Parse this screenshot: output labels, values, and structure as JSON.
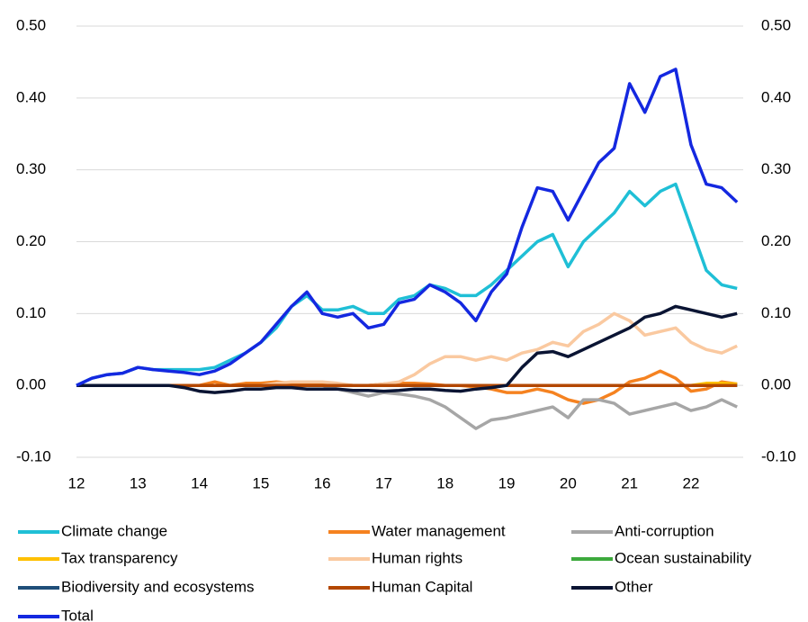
{
  "chart_data": {
    "type": "line",
    "x": [
      12,
      12.25,
      12.5,
      12.75,
      13,
      13.25,
      13.5,
      13.75,
      14,
      14.25,
      14.5,
      14.75,
      15,
      15.25,
      15.5,
      15.75,
      16,
      16.25,
      16.5,
      16.75,
      17,
      17.25,
      17.5,
      17.75,
      18,
      18.25,
      18.5,
      18.75,
      19,
      19.25,
      19.5,
      19.75,
      20,
      20.25,
      20.5,
      20.75,
      21,
      21.25,
      21.5,
      21.75,
      22,
      22.25,
      22.5,
      22.75
    ],
    "xlim": [
      12,
      22.85
    ],
    "xticks": [
      12,
      13,
      14,
      15,
      16,
      17,
      18,
      19,
      20,
      21,
      22
    ],
    "ylim": [
      -0.1,
      0.5
    ],
    "yticks": [
      {
        "value": -0.1,
        "label": "-0.10"
      },
      {
        "value": 0,
        "label": "0.00"
      },
      {
        "value": 0.1,
        "label": "0.10"
      },
      {
        "value": 0.2,
        "label": "0.20"
      },
      {
        "value": 0.3,
        "label": "0.30"
      },
      {
        "value": 0.4,
        "label": "0.40"
      },
      {
        "value": 0.5,
        "label": "0.50"
      }
    ],
    "y2lim": [
      -0.1,
      0.5
    ],
    "y2ticks": [
      {
        "value": -0.1,
        "label": "-0.10"
      },
      {
        "value": 0,
        "label": "0.00"
      },
      {
        "value": 0.1,
        "label": "0.10"
      },
      {
        "value": 0.2,
        "label": "0.20"
      },
      {
        "value": 0.3,
        "label": "0.30"
      },
      {
        "value": 0.4,
        "label": "0.40"
      },
      {
        "value": 0.5,
        "label": "0.50"
      }
    ],
    "grid": true,
    "legend": "bottom",
    "series": [
      {
        "name": "Climate change",
        "color": "#1fbfd6",
        "values": [
          0,
          0.01,
          0.015,
          0.017,
          0.025,
          0.022,
          0.022,
          0.022,
          0.022,
          0.025,
          0.035,
          0.045,
          0.06,
          0.08,
          0.11,
          0.125,
          0.105,
          0.105,
          0.11,
          0.1,
          0.1,
          0.12,
          0.125,
          0.14,
          0.135,
          0.125,
          0.125,
          0.14,
          0.16,
          0.18,
          0.2,
          0.21,
          0.165,
          0.2,
          0.22,
          0.24,
          0.27,
          0.25,
          0.27,
          0.28,
          0.22,
          0.16,
          0.14,
          0.135
        ]
      },
      {
        "name": "Water management",
        "color": "#f58220",
        "values": [
          0,
          0,
          0,
          0,
          0,
          0,
          0,
          0,
          0,
          0.005,
          0,
          0.003,
          0.003,
          0.005,
          0.003,
          0.002,
          0.003,
          0.002,
          0,
          0,
          0.002,
          0.003,
          0.003,
          0.002,
          0,
          0,
          -0.002,
          -0.005,
          -0.01,
          -0.01,
          -0.005,
          -0.01,
          -0.02,
          -0.025,
          -0.02,
          -0.01,
          0.005,
          0.01,
          0.02,
          0.01,
          -0.008,
          -0.005,
          0.005,
          0.002
        ]
      },
      {
        "name": "Anti-corruption",
        "color": "#a6a6a6",
        "values": [
          0,
          0,
          0,
          0,
          0,
          0,
          0,
          0,
          0,
          0,
          0,
          0,
          0,
          0,
          0,
          0,
          0,
          -0.005,
          -0.01,
          -0.015,
          -0.01,
          -0.012,
          -0.015,
          -0.02,
          -0.03,
          -0.045,
          -0.06,
          -0.048,
          -0.045,
          -0.04,
          -0.035,
          -0.03,
          -0.045,
          -0.02,
          -0.02,
          -0.025,
          -0.04,
          -0.035,
          -0.03,
          -0.025,
          -0.035,
          -0.03,
          -0.02,
          -0.03
        ]
      },
      {
        "name": "Tax transparency",
        "color": "#ffc000",
        "values": [
          0,
          0,
          0,
          0,
          0,
          0,
          0,
          0,
          0,
          0,
          0,
          0,
          0,
          0,
          0,
          0,
          0,
          0,
          0,
          0,
          0,
          0,
          0,
          0,
          0,
          0,
          0,
          0,
          0,
          0,
          0,
          0,
          0,
          0,
          0,
          0,
          0,
          0,
          0,
          0,
          0,
          0.003,
          0.003,
          0.002
        ]
      },
      {
        "name": "Human rights",
        "color": "#fac9a0",
        "values": [
          0,
          0,
          0,
          0,
          0,
          0,
          0,
          0,
          0,
          0,
          0,
          0,
          0,
          0.003,
          0.005,
          0.005,
          0.005,
          0.003,
          0,
          0,
          0.002,
          0.005,
          0.015,
          0.03,
          0.04,
          0.04,
          0.035,
          0.04,
          0.035,
          0.045,
          0.05,
          0.06,
          0.055,
          0.075,
          0.085,
          0.1,
          0.09,
          0.07,
          0.075,
          0.08,
          0.06,
          0.05,
          0.045,
          0.055
        ]
      },
      {
        "name": "Ocean sustainability",
        "color": "#3daa3d",
        "values": [
          0,
          0,
          0,
          0,
          0,
          0,
          0,
          0,
          0,
          0,
          0,
          0,
          0,
          0,
          0,
          0,
          0,
          0,
          0,
          0,
          0,
          0,
          0,
          0,
          0,
          0,
          0,
          0,
          0,
          0,
          0,
          0,
          0,
          0,
          0,
          0,
          0,
          0,
          0,
          0,
          0,
          0,
          0,
          0
        ]
      },
      {
        "name": "Biodiversity and ecosystems",
        "color": "#1f4e79",
        "values": [
          0,
          0,
          0,
          0,
          0,
          0,
          0,
          0,
          0,
          0,
          0,
          0,
          0,
          0,
          0,
          0,
          0,
          0,
          0,
          0,
          0,
          0,
          0,
          0,
          0,
          0,
          0,
          0,
          0,
          0,
          0,
          0,
          0,
          0,
          0,
          0,
          0,
          0,
          0,
          0,
          0,
          0,
          0,
          0
        ]
      },
      {
        "name": "Human Capital",
        "color": "#b34700",
        "values": [
          0,
          0,
          0,
          0,
          0,
          0,
          0,
          0,
          0,
          0,
          0,
          0,
          0,
          0,
          0,
          0,
          0,
          0,
          0,
          0,
          0,
          0,
          0,
          0,
          0,
          0,
          0,
          0,
          0,
          0,
          0,
          0,
          0,
          0,
          0,
          0,
          0,
          0,
          0,
          0,
          0,
          0,
          0,
          0
        ]
      },
      {
        "name": "Other",
        "color": "#0a1433",
        "values": [
          0,
          0,
          0,
          0,
          0,
          0,
          0,
          -0.003,
          -0.008,
          -0.01,
          -0.008,
          -0.005,
          -0.005,
          -0.003,
          -0.003,
          -0.005,
          -0.005,
          -0.005,
          -0.007,
          -0.007,
          -0.008,
          -0.007,
          -0.005,
          -0.005,
          -0.007,
          -0.008,
          -0.005,
          -0.003,
          0,
          0.025,
          0.045,
          0.047,
          0.04,
          0.05,
          0.06,
          0.07,
          0.08,
          0.095,
          0.1,
          0.11,
          0.105,
          0.1,
          0.095,
          0.1
        ]
      },
      {
        "name": "Total",
        "color": "#1428e0",
        "values": [
          0,
          0.01,
          0.015,
          0.017,
          0.025,
          0.022,
          0.02,
          0.018,
          0.015,
          0.02,
          0.03,
          0.045,
          0.06,
          0.085,
          0.11,
          0.13,
          0.1,
          0.095,
          0.1,
          0.08,
          0.085,
          0.115,
          0.12,
          0.14,
          0.13,
          0.115,
          0.09,
          0.13,
          0.155,
          0.22,
          0.275,
          0.27,
          0.23,
          0.27,
          0.31,
          0.33,
          0.42,
          0.38,
          0.43,
          0.44,
          0.335,
          0.28,
          0.275,
          0.255
        ]
      }
    ]
  }
}
